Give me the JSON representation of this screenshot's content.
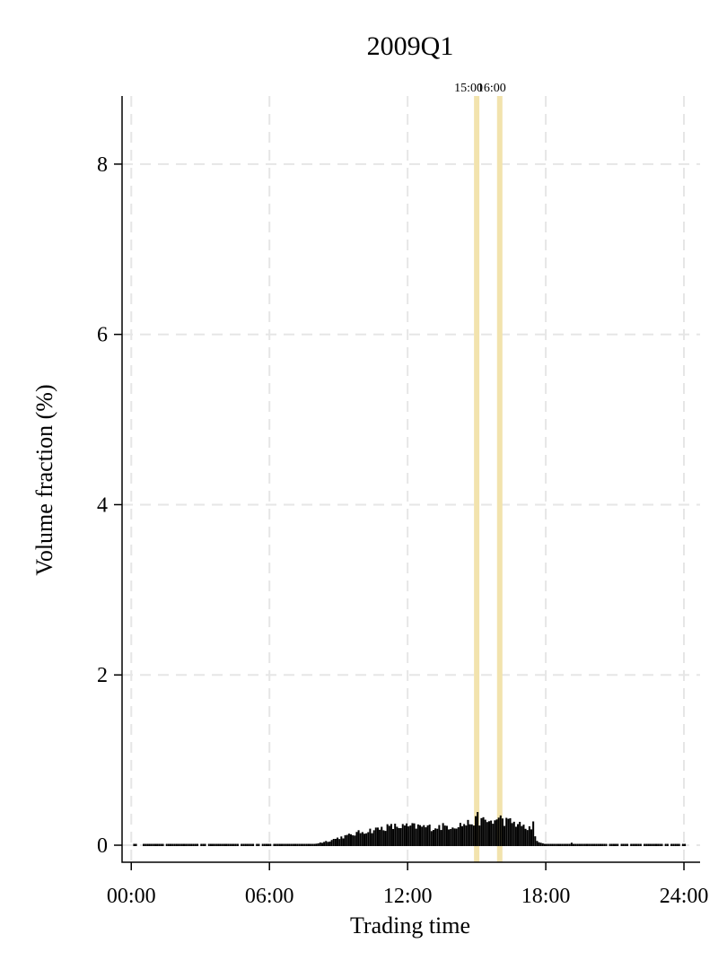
{
  "chart_data": {
    "type": "bar",
    "title": "2009Q1",
    "xlabel": "Trading time",
    "ylabel": "Volume fraction (%)",
    "x_unit": "hours",
    "xlim": [
      -0.4,
      24.7
    ],
    "ylim": [
      -0.2,
      8.8
    ],
    "x_ticks": [
      {
        "value": 0,
        "label": "00:00"
      },
      {
        "value": 6,
        "label": "06:00"
      },
      {
        "value": 12,
        "label": "12:00"
      },
      {
        "value": 18,
        "label": "18:00"
      },
      {
        "value": 24,
        "label": "24:00"
      }
    ],
    "y_ticks": [
      {
        "value": 0,
        "label": "0"
      },
      {
        "value": 2,
        "label": "2"
      },
      {
        "value": 4,
        "label": "4"
      },
      {
        "value": 6,
        "label": "6"
      },
      {
        "value": 8,
        "label": "8"
      }
    ],
    "reference_lines": [
      {
        "x": 15,
        "label": "15:00",
        "color": "#f2e3ad"
      },
      {
        "x": 16,
        "label": "16:00",
        "color": "#f2e3ad"
      }
    ],
    "grid": true,
    "bar_color": "#000000",
    "profile": [
      {
        "x": 0.0,
        "y": 0.005
      },
      {
        "x": 7.5,
        "y": 0.01
      },
      {
        "x": 8.0,
        "y": 0.03
      },
      {
        "x": 8.5,
        "y": 0.06
      },
      {
        "x": 9.0,
        "y": 0.1
      },
      {
        "x": 9.5,
        "y": 0.13
      },
      {
        "x": 10.0,
        "y": 0.17
      },
      {
        "x": 10.5,
        "y": 0.19
      },
      {
        "x": 11.0,
        "y": 0.22
      },
      {
        "x": 11.5,
        "y": 0.23
      },
      {
        "x": 12.0,
        "y": 0.23
      },
      {
        "x": 12.5,
        "y": 0.23
      },
      {
        "x": 13.0,
        "y": 0.22
      },
      {
        "x": 13.5,
        "y": 0.23
      },
      {
        "x": 14.0,
        "y": 0.24
      },
      {
        "x": 14.5,
        "y": 0.26
      },
      {
        "x": 15.0,
        "y": 0.3
      },
      {
        "x": 15.5,
        "y": 0.29
      },
      {
        "x": 16.0,
        "y": 0.3
      },
      {
        "x": 16.5,
        "y": 0.28
      },
      {
        "x": 17.0,
        "y": 0.23
      },
      {
        "x": 17.4,
        "y": 0.18
      },
      {
        "x": 17.6,
        "y": 0.05
      },
      {
        "x": 18.0,
        "y": 0.02
      },
      {
        "x": 19.0,
        "y": 0.01
      },
      {
        "x": 20.0,
        "y": 0.005
      },
      {
        "x": 24.0,
        "y": 0.003
      }
    ],
    "spikes": [
      {
        "x": 15.0,
        "y": 0.4
      },
      {
        "x": 16.0,
        "y": 0.36
      },
      {
        "x": 17.4,
        "y": 0.29
      },
      {
        "x": 19.1,
        "y": 0.04
      }
    ]
  }
}
